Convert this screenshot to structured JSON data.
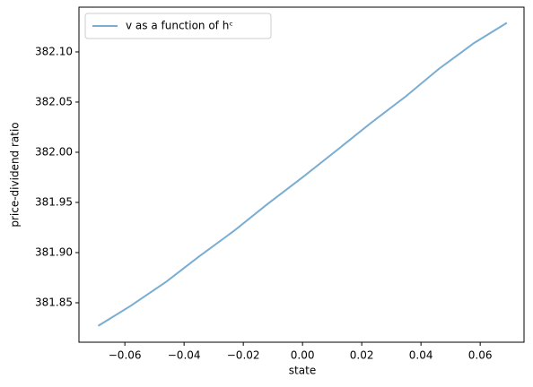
{
  "chart_data": {
    "type": "line",
    "xlabel": "state",
    "ylabel": "price-dividend ratio",
    "x": [
      -0.069,
      -0.058,
      -0.046,
      -0.035,
      -0.023,
      -0.012,
      0,
      0.012,
      0.023,
      0.035,
      0.046,
      0.058,
      0.069
    ],
    "series": [
      {
        "name": "v as a function of hᶜ",
        "color": "#79add2",
        "values": [
          381.827,
          381.847,
          381.871,
          381.896,
          381.922,
          381.948,
          381.975,
          382.003,
          382.029,
          382.056,
          382.083,
          382.109,
          382.129
        ]
      }
    ],
    "xlim": [
      -0.0755,
      0.0748
    ],
    "ylim": [
      381.8107,
      382.1446
    ],
    "xticks": [
      {
        "value": -0.06,
        "label": "−0.06"
      },
      {
        "value": -0.04,
        "label": "−0.04"
      },
      {
        "value": -0.02,
        "label": "−0.02"
      },
      {
        "value": 0,
        "label": "0.00"
      },
      {
        "value": 0.02,
        "label": "0.02"
      },
      {
        "value": 0.04,
        "label": "0.04"
      },
      {
        "value": 0.06,
        "label": "0.06"
      }
    ],
    "yticks": [
      381.85,
      {
        "value": 381.9,
        "label": "381.90"
      },
      381.95,
      {
        "value": 382,
        "label": "382.00"
      },
      382.05,
      {
        "value": 382.1,
        "label": "382.10"
      }
    ],
    "legend": "upper left"
  }
}
